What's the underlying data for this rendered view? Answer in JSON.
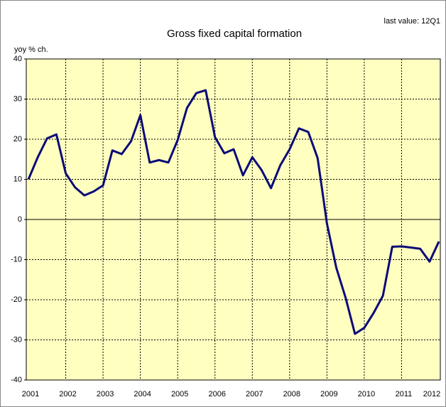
{
  "chart_data": {
    "type": "line",
    "title": "Gross fixed capital formation",
    "annotation": "last value: 12Q1",
    "y_label": "yoy % ch.",
    "categories": [
      "2001",
      null,
      null,
      null,
      "2002",
      null,
      null,
      null,
      "2003",
      null,
      null,
      null,
      "2004",
      null,
      null,
      null,
      "2005",
      null,
      null,
      null,
      "2006",
      null,
      null,
      null,
      "2007",
      null,
      null,
      null,
      "2008",
      null,
      null,
      null,
      "2009",
      null,
      null,
      null,
      "2010",
      null,
      null,
      null,
      "2011",
      null,
      null,
      null,
      "2012"
    ],
    "values": [
      10,
      15.5,
      20.2,
      21.2,
      11.5,
      8,
      6,
      7,
      8.5,
      17.2,
      16.3,
      19.5,
      26,
      14.2,
      14.8,
      14.2,
      19.8,
      27.8,
      31.5,
      32.2,
      20.5,
      16.5,
      17.5,
      11,
      15.5,
      12.3,
      7.8,
      13.5,
      17.5,
      22.7,
      21.8,
      15.3,
      -1,
      -12,
      -19.5,
      -28.5,
      -27,
      -23.3,
      -19,
      -6.8,
      -6.7,
      -7,
      -7.3,
      -10.5,
      -5.5
    ],
    "color": "#0a0a78",
    "ylim": [
      -40,
      40
    ],
    "yticks": [
      -40,
      -30,
      -20,
      -10,
      0,
      10,
      20,
      30,
      40
    ],
    "grid": true,
    "background": "#ffffc0"
  }
}
